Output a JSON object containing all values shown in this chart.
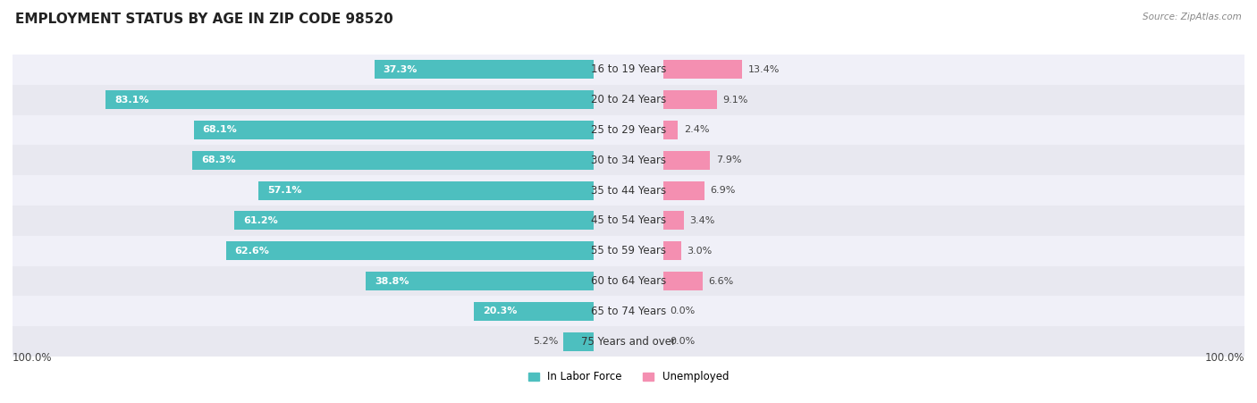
{
  "title": "EMPLOYMENT STATUS BY AGE IN ZIP CODE 98520",
  "source": "Source: ZipAtlas.com",
  "age_groups": [
    "16 to 19 Years",
    "20 to 24 Years",
    "25 to 29 Years",
    "30 to 34 Years",
    "35 to 44 Years",
    "45 to 54 Years",
    "55 to 59 Years",
    "60 to 64 Years",
    "65 to 74 Years",
    "75 Years and over"
  ],
  "in_labor_force": [
    37.3,
    83.1,
    68.1,
    68.3,
    57.1,
    61.2,
    62.6,
    38.8,
    20.3,
    5.2
  ],
  "unemployed": [
    13.4,
    9.1,
    2.4,
    7.9,
    6.9,
    3.4,
    3.0,
    6.6,
    0.0,
    0.0
  ],
  "labor_color": "#4DBFBF",
  "unemployed_color": "#F48FB1",
  "row_bg_colors": [
    "#F0F0F8",
    "#E8E8F0"
  ],
  "title_fontsize": 11,
  "label_fontsize": 8.5,
  "value_fontsize": 8,
  "legend_fontsize": 8.5,
  "source_fontsize": 7.5,
  "max_value": 100.0
}
